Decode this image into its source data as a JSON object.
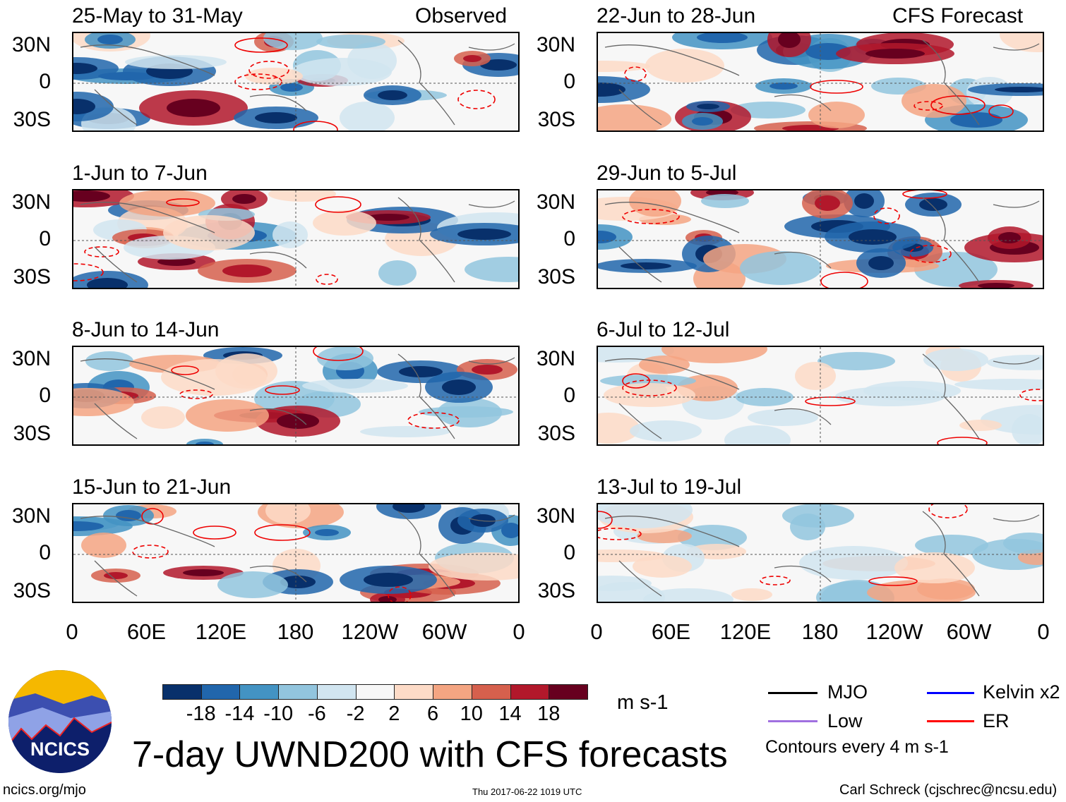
{
  "headers": {
    "observed": "Observed",
    "forecast": "CFS Forecast"
  },
  "panels": [
    {
      "title": "25-May to 31-May",
      "column": "observed"
    },
    {
      "title": "1-Jun to 7-Jun",
      "column": "observed"
    },
    {
      "title": "8-Jun to 14-Jun",
      "column": "observed"
    },
    {
      "title": "15-Jun to 21-Jun",
      "column": "observed"
    },
    {
      "title": "22-Jun to 28-Jun",
      "column": "forecast"
    },
    {
      "title": "29-Jun to 5-Jul",
      "column": "forecast"
    },
    {
      "title": "6-Jul to 12-Jul",
      "column": "forecast"
    },
    {
      "title": "13-Jul to 19-Jul",
      "column": "forecast"
    }
  ],
  "y_ticks": [
    "30N",
    "0",
    "30S"
  ],
  "x_ticks": [
    "0",
    "60E",
    "120E",
    "180",
    "120W",
    "60W",
    "0"
  ],
  "colorbar": {
    "colors": [
      "#08306b",
      "#2166ac",
      "#4393c3",
      "#92c5de",
      "#d1e5f0",
      "#f7f7f7",
      "#fddbc7",
      "#f4a582",
      "#d6604d",
      "#b2182b",
      "#67001f"
    ],
    "labels": [
      "-18",
      "-14",
      "-10",
      "-6",
      "-2",
      "2",
      "6",
      "10",
      "14",
      "18"
    ],
    "units": "m s-1"
  },
  "legend": {
    "items": [
      {
        "label": "MJO",
        "color": "#000000"
      },
      {
        "label": "Kelvin x2",
        "color": "#0000ff"
      },
      {
        "label": "Low",
        "color": "#a070e0"
      },
      {
        "label": "ER",
        "color": "#ff0000"
      }
    ],
    "note": "Contours every 4 m s-1"
  },
  "logo": {
    "text": "NCICS"
  },
  "title": "7-day UWND200 with CFS forecasts",
  "footer": {
    "left": "ncics.org/mjo",
    "center": "Thu 2017-06-22 1019 UTC",
    "right": "Carl Schreck (cjschrec@ncsu.edu)"
  }
}
